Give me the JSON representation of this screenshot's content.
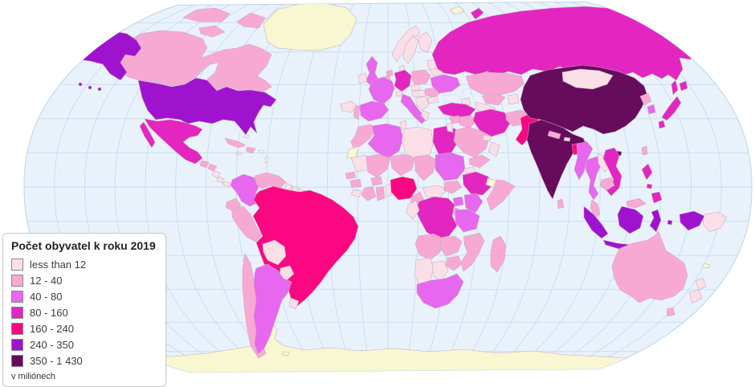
{
  "legend": {
    "title": "Počet obyvatel k roku 2019",
    "unit_note": "v miliónech",
    "classes": [
      {
        "key": "c1",
        "label": "less than 12",
        "color": "#fbdfe7"
      },
      {
        "key": "c2",
        "label": "12 - 40",
        "color": "#f8a9d3"
      },
      {
        "key": "c3",
        "label": "40 - 80",
        "color": "#e767ee"
      },
      {
        "key": "c4",
        "label": "80 - 160",
        "color": "#e226bf"
      },
      {
        "key": "c5",
        "label": "160 - 240",
        "color": "#fa0781"
      },
      {
        "key": "c6",
        "label": "240 - 350",
        "color": "#a013ce"
      },
      {
        "key": "c7",
        "label": "350 - 1 430",
        "color": "#670b5d"
      }
    ]
  },
  "map": {
    "no_data_color": "#f9f6d2",
    "ocean_color": "#e9f2fb",
    "graticule_color": "#c7def2",
    "border_color": "#c4a9bd",
    "countries": [
      {
        "id": "usa",
        "class": "c6"
      },
      {
        "id": "canada",
        "class": "c2"
      },
      {
        "id": "greenland",
        "class": "nodata"
      },
      {
        "id": "mexico",
        "class": "c4"
      },
      {
        "id": "guatemala",
        "class": "c2"
      },
      {
        "id": "honduras",
        "class": "c2"
      },
      {
        "id": "nicaragua",
        "class": "c1"
      },
      {
        "id": "costa-rica",
        "class": "c1"
      },
      {
        "id": "panama",
        "class": "c1"
      },
      {
        "id": "cuba",
        "class": "c2"
      },
      {
        "id": "hispaniola",
        "class": "c2"
      },
      {
        "id": "jamaica",
        "class": "c1"
      },
      {
        "id": "bahamas",
        "class": "nodata"
      },
      {
        "id": "puerto-rico",
        "class": "nodata"
      },
      {
        "id": "antilles",
        "class": "nodata"
      },
      {
        "id": "colombia",
        "class": "c3"
      },
      {
        "id": "venezuela",
        "class": "c2"
      },
      {
        "id": "guyana",
        "class": "c1"
      },
      {
        "id": "suriname",
        "class": "c1"
      },
      {
        "id": "french-guiana",
        "class": "nodata"
      },
      {
        "id": "ecuador",
        "class": "c2"
      },
      {
        "id": "peru",
        "class": "c2"
      },
      {
        "id": "brazil",
        "class": "c5"
      },
      {
        "id": "bolivia",
        "class": "c1"
      },
      {
        "id": "paraguay",
        "class": "c1"
      },
      {
        "id": "chile",
        "class": "c2"
      },
      {
        "id": "argentina",
        "class": "c3"
      },
      {
        "id": "uruguay",
        "class": "c1"
      },
      {
        "id": "falklands",
        "class": "nodata"
      },
      {
        "id": "iceland",
        "class": "c1"
      },
      {
        "id": "uk",
        "class": "c3"
      },
      {
        "id": "ireland",
        "class": "c1"
      },
      {
        "id": "norway",
        "class": "c1"
      },
      {
        "id": "sweden",
        "class": "c1"
      },
      {
        "id": "finland",
        "class": "c1"
      },
      {
        "id": "denmark",
        "class": "c1"
      },
      {
        "id": "baltics",
        "class": "c1"
      },
      {
        "id": "netherlands",
        "class": "c2"
      },
      {
        "id": "belgium",
        "class": "c2"
      },
      {
        "id": "germany",
        "class": "c4"
      },
      {
        "id": "poland",
        "class": "c2"
      },
      {
        "id": "czechia",
        "class": "c1"
      },
      {
        "id": "austria-hungary",
        "class": "c1"
      },
      {
        "id": "switzerland",
        "class": "c1"
      },
      {
        "id": "france",
        "class": "c3"
      },
      {
        "id": "spain",
        "class": "c3"
      },
      {
        "id": "portugal",
        "class": "c2"
      },
      {
        "id": "italy",
        "class": "c3"
      },
      {
        "id": "balkans",
        "class": "c1"
      },
      {
        "id": "greece",
        "class": "c1"
      },
      {
        "id": "romania",
        "class": "c2"
      },
      {
        "id": "bulgaria",
        "class": "c1"
      },
      {
        "id": "ukraine",
        "class": "c3"
      },
      {
        "id": "belarus",
        "class": "c1"
      },
      {
        "id": "svalbard",
        "class": "nodata"
      },
      {
        "id": "morocco",
        "class": "c2"
      },
      {
        "id": "western-sahara",
        "class": "nodata"
      },
      {
        "id": "algeria",
        "class": "c3"
      },
      {
        "id": "tunisia",
        "class": "c1"
      },
      {
        "id": "libya",
        "class": "c1"
      },
      {
        "id": "egypt",
        "class": "c4"
      },
      {
        "id": "mauritania",
        "class": "c1"
      },
      {
        "id": "mali",
        "class": "c2"
      },
      {
        "id": "senegal",
        "class": "c2"
      },
      {
        "id": "guinea",
        "class": "c2"
      },
      {
        "id": "sierra-leone-liberia",
        "class": "c1"
      },
      {
        "id": "cote-divoire",
        "class": "c2"
      },
      {
        "id": "burkina-faso",
        "class": "c2"
      },
      {
        "id": "ghana",
        "class": "c2"
      },
      {
        "id": "togo-benin",
        "class": "c1"
      },
      {
        "id": "niger",
        "class": "c2"
      },
      {
        "id": "chad",
        "class": "c2"
      },
      {
        "id": "nigeria",
        "class": "c5"
      },
      {
        "id": "cameroon",
        "class": "c2"
      },
      {
        "id": "central-african-republic",
        "class": "c1"
      },
      {
        "id": "south-sudan",
        "class": "c2"
      },
      {
        "id": "sudan",
        "class": "c3"
      },
      {
        "id": "eritrea",
        "class": "c1"
      },
      {
        "id": "ethiopia",
        "class": "c4"
      },
      {
        "id": "somalia",
        "class": "c2"
      },
      {
        "id": "somaliland",
        "class": "nodata"
      },
      {
        "id": "uganda",
        "class": "c3"
      },
      {
        "id": "kenya",
        "class": "c3"
      },
      {
        "id": "dr-congo",
        "class": "c4"
      },
      {
        "id": "congo-gabon",
        "class": "c1"
      },
      {
        "id": "rwanda-burundi",
        "class": "c2"
      },
      {
        "id": "tanzania",
        "class": "c3"
      },
      {
        "id": "angola",
        "class": "c2"
      },
      {
        "id": "zambia",
        "class": "c2"
      },
      {
        "id": "malawi",
        "class": "c2"
      },
      {
        "id": "mozambique",
        "class": "c2"
      },
      {
        "id": "zimbabwe",
        "class": "c2"
      },
      {
        "id": "namibia",
        "class": "c1"
      },
      {
        "id": "botswana",
        "class": "c1"
      },
      {
        "id": "south-africa",
        "class": "c3"
      },
      {
        "id": "madagascar",
        "class": "c2"
      },
      {
        "id": "russia",
        "class": "c4"
      },
      {
        "id": "kazakhstan",
        "class": "c2"
      },
      {
        "id": "uzbekistan",
        "class": "c2"
      },
      {
        "id": "turkmenistan",
        "class": "c1"
      },
      {
        "id": "kyrgyzstan-tajikistan",
        "class": "c1"
      },
      {
        "id": "caucasus",
        "class": "c1"
      },
      {
        "id": "turkey",
        "class": "c4"
      },
      {
        "id": "syria",
        "class": "c2"
      },
      {
        "id": "israel-jordan",
        "class": "c1"
      },
      {
        "id": "iraq",
        "class": "c2"
      },
      {
        "id": "iran",
        "class": "c4"
      },
      {
        "id": "saudi-arabia",
        "class": "c2"
      },
      {
        "id": "yemen",
        "class": "c2"
      },
      {
        "id": "oman",
        "class": "c1"
      },
      {
        "id": "gulf-states",
        "class": "c1"
      },
      {
        "id": "afghanistan",
        "class": "c2"
      },
      {
        "id": "pakistan",
        "class": "c5"
      },
      {
        "id": "india",
        "class": "c7"
      },
      {
        "id": "nepal",
        "class": "c2"
      },
      {
        "id": "bhutan",
        "class": "c1"
      },
      {
        "id": "bangladesh",
        "class": "c5"
      },
      {
        "id": "sri-lanka",
        "class": "c2"
      },
      {
        "id": "myanmar",
        "class": "c3"
      },
      {
        "id": "thailand",
        "class": "c3"
      },
      {
        "id": "laos",
        "class": "c1"
      },
      {
        "id": "vietnam",
        "class": "c4"
      },
      {
        "id": "cambodia",
        "class": "c2"
      },
      {
        "id": "malaysia",
        "class": "c2"
      },
      {
        "id": "indonesia",
        "class": "c6"
      },
      {
        "id": "png",
        "class": "c1"
      },
      {
        "id": "philippines",
        "class": "c4"
      },
      {
        "id": "taiwan",
        "class": "c2"
      },
      {
        "id": "japan",
        "class": "c4"
      },
      {
        "id": "south-korea",
        "class": "c3"
      },
      {
        "id": "north-korea",
        "class": "c2"
      },
      {
        "id": "mongolia",
        "class": "c1"
      },
      {
        "id": "china",
        "class": "c7"
      },
      {
        "id": "australia",
        "class": "c2"
      },
      {
        "id": "new-zealand",
        "class": "c1"
      },
      {
        "id": "new-caledonia",
        "class": "nodata"
      },
      {
        "id": "antarctica",
        "class": "nodata"
      }
    ]
  }
}
